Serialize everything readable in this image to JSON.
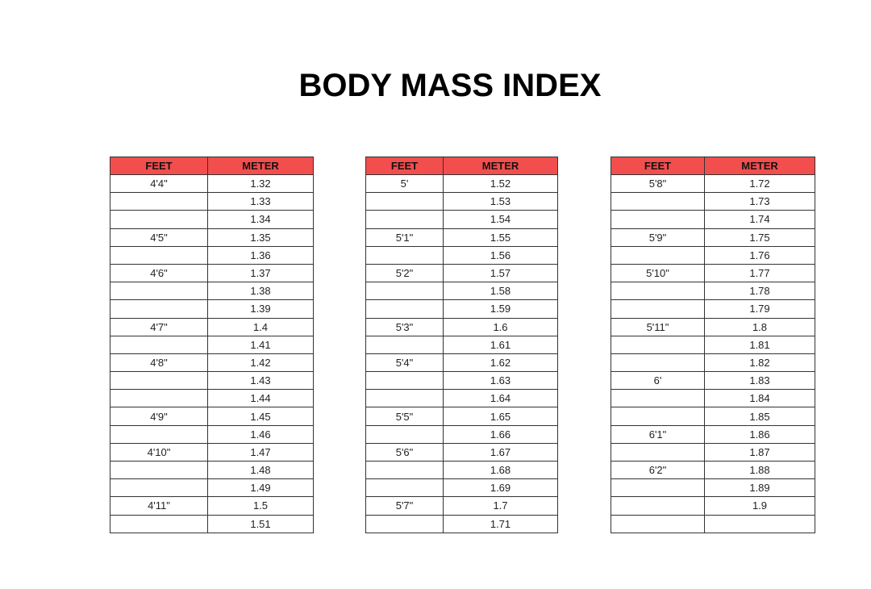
{
  "title": "BODY MASS INDEX",
  "colors": {
    "header_background": "#f24e4e",
    "grid_line": "#333333"
  },
  "tables": [
    {
      "headers": [
        "FEET",
        "METER"
      ],
      "rows": [
        [
          "4'4\"",
          "1.32"
        ],
        [
          "",
          "1.33"
        ],
        [
          "",
          "1.34"
        ],
        [
          "4'5\"",
          "1.35"
        ],
        [
          "",
          "1.36"
        ],
        [
          "4'6\"",
          "1.37"
        ],
        [
          "",
          "1.38"
        ],
        [
          "",
          "1.39"
        ],
        [
          "4'7\"",
          "1.4"
        ],
        [
          "",
          "1.41"
        ],
        [
          "4'8\"",
          "1.42"
        ],
        [
          "",
          "1.43"
        ],
        [
          "",
          "1.44"
        ],
        [
          "4'9\"",
          "1.45"
        ],
        [
          "",
          "1.46"
        ],
        [
          "4'10\"",
          "1.47"
        ],
        [
          "",
          "1.48"
        ],
        [
          "",
          "1.49"
        ],
        [
          "4'11\"",
          "1.5"
        ],
        [
          "",
          "1.51"
        ]
      ]
    },
    {
      "headers": [
        "FEET",
        "METER"
      ],
      "rows": [
        [
          "5'",
          "1.52"
        ],
        [
          "",
          "1.53"
        ],
        [
          "",
          "1.54"
        ],
        [
          "5'1\"",
          "1.55"
        ],
        [
          "",
          "1.56"
        ],
        [
          "5'2\"",
          "1.57"
        ],
        [
          "",
          "1.58"
        ],
        [
          "",
          "1.59"
        ],
        [
          "5'3\"",
          "1.6"
        ],
        [
          "",
          "1.61"
        ],
        [
          "5'4\"",
          "1.62"
        ],
        [
          "",
          "1.63"
        ],
        [
          "",
          "1.64"
        ],
        [
          "5'5\"",
          "1.65"
        ],
        [
          "",
          "1.66"
        ],
        [
          "5'6\"",
          "1.67"
        ],
        [
          "",
          "1.68"
        ],
        [
          "",
          "1.69"
        ],
        [
          "5'7\"",
          "1.7"
        ],
        [
          "",
          "1.71"
        ]
      ]
    },
    {
      "headers": [
        "FEET",
        "METER"
      ],
      "rows": [
        [
          "5'8\"",
          "1.72"
        ],
        [
          "",
          "1.73"
        ],
        [
          "",
          "1.74"
        ],
        [
          "5'9\"",
          "1.75"
        ],
        [
          "",
          "1.76"
        ],
        [
          "5'10\"",
          "1.77"
        ],
        [
          "",
          "1.78"
        ],
        [
          "",
          "1.79"
        ],
        [
          "5'11\"",
          "1.8"
        ],
        [
          "",
          "1.81"
        ],
        [
          "",
          "1.82"
        ],
        [
          "6'",
          "1.83"
        ],
        [
          "",
          "1.84"
        ],
        [
          "",
          "1.85"
        ],
        [
          "6'1\"",
          "1.86"
        ],
        [
          "",
          "1.87"
        ],
        [
          "6'2\"",
          "1.88"
        ],
        [
          "",
          "1.89"
        ],
        [
          "",
          "1.9"
        ],
        [
          "",
          ""
        ]
      ]
    }
  ]
}
